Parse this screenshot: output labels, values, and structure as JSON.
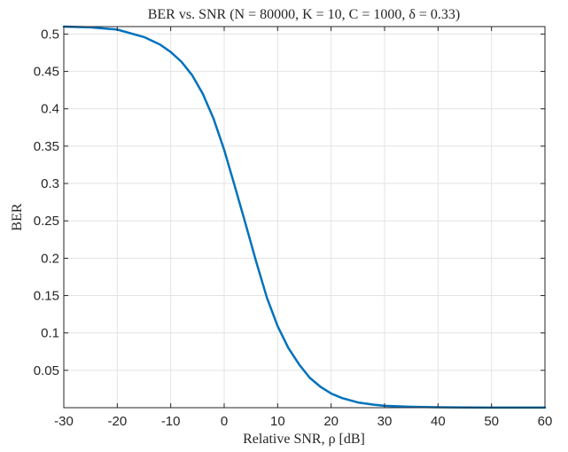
{
  "chart_data": {
    "type": "line",
    "title": "BER vs. SNR (N = 80000, K = 10, C = 1000, δ = 0.33)",
    "xlabel": "Relative SNR, ρ [dB]",
    "ylabel": "BER",
    "xlim": [
      -30,
      60
    ],
    "ylim": [
      0,
      0.51
    ],
    "xticks": [
      -30,
      -20,
      -10,
      0,
      10,
      20,
      30,
      40,
      50,
      60
    ],
    "xtick_labels": [
      "-30",
      "-20",
      "-10",
      "0",
      "10",
      "20",
      "30",
      "40",
      "50",
      "60"
    ],
    "yticks": [
      0.05,
      0.1,
      0.15,
      0.2,
      0.25,
      0.3,
      0.35,
      0.4,
      0.45,
      0.5
    ],
    "ytick_labels": [
      "0.05",
      "0.1",
      "0.15",
      "0.2",
      "0.25",
      "0.3",
      "0.35",
      "0.4",
      "0.45",
      "0.5"
    ],
    "grid": true,
    "color": "#0072BD",
    "series": [
      {
        "x": [
          -30,
          -25,
          -20,
          -15,
          -12,
          -10,
          -8,
          -6,
          -4,
          -2,
          0,
          2,
          4,
          6,
          8,
          10,
          12,
          14,
          16,
          18,
          20,
          22,
          25,
          28,
          30,
          35,
          40,
          45,
          50,
          55,
          60
        ],
        "y": [
          0.51,
          0.509,
          0.506,
          0.496,
          0.486,
          0.476,
          0.463,
          0.445,
          0.42,
          0.387,
          0.345,
          0.296,
          0.246,
          0.195,
          0.147,
          0.109,
          0.08,
          0.058,
          0.04,
          0.028,
          0.019,
          0.013,
          0.007,
          0.004,
          0.0025,
          0.0012,
          0.0006,
          0.0003,
          0.0002,
          0.0001,
          0.0001
        ]
      }
    ]
  }
}
